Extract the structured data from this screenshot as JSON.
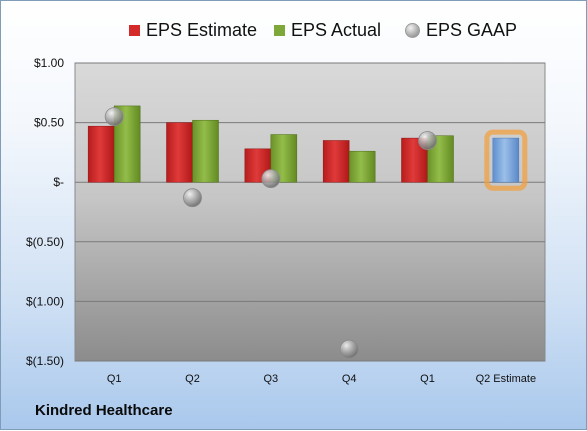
{
  "legend": {
    "estimate": "EPS Estimate",
    "actual": "EPS Actual",
    "gaap": "EPS GAAP"
  },
  "colors": {
    "estimate": "#d42a2a",
    "actual": "#7fa83a",
    "gaap": "#9a9a9a",
    "forecast": "#7aa5dc",
    "forecast_glow": "#f0a040"
  },
  "company": "Kindred Healthcare",
  "chart_data": {
    "type": "bar",
    "categories": [
      "Q1",
      "Q2",
      "Q3",
      "Q4",
      "Q1",
      "Q2 Estimate"
    ],
    "series": [
      {
        "name": "EPS Estimate",
        "values": [
          0.47,
          0.5,
          0.28,
          0.35,
          0.37,
          null
        ]
      },
      {
        "name": "EPS Actual",
        "values": [
          0.64,
          0.52,
          0.4,
          0.26,
          0.39,
          null
        ]
      },
      {
        "name": "EPS GAAP",
        "values": [
          0.55,
          -0.13,
          0.03,
          -1.4,
          0.35,
          null
        ]
      }
    ],
    "forecast": {
      "category": "Q2 Estimate",
      "value": 0.37
    },
    "yticks": [
      1.0,
      0.5,
      0,
      -0.5,
      -1.0,
      -1.5
    ],
    "ytick_labels": [
      "$1.00",
      "$0.50",
      "$-",
      "$(0.50)",
      "$(1.00)",
      "$(1.50)"
    ],
    "ylim": [
      -1.5,
      1.0
    ],
    "legend_position": "top",
    "grid": true
  }
}
